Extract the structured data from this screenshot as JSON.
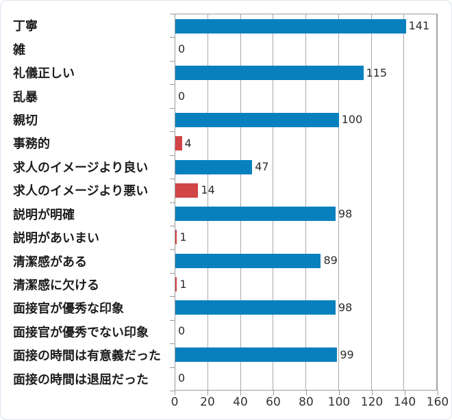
{
  "chart_data": {
    "type": "bar",
    "orientation": "horizontal",
    "title": "",
    "xlabel": "",
    "ylabel": "",
    "xlim": [
      0,
      160
    ],
    "x_ticks": [
      0,
      20,
      40,
      60,
      80,
      100,
      120,
      140,
      160
    ],
    "grid": "vertical-only",
    "legend": "none",
    "value_labels_position": "right-of-bar-end",
    "colors": {
      "positive": "#0880BE",
      "negative": "#D14547",
      "gridline": "#a8a8a8",
      "axis_border": "#9b9b9b",
      "category_text": "#1c1c1c",
      "value_text": "#2b2b2b",
      "tick_text": "#333333"
    },
    "categories": [
      "丁寧",
      "雑",
      "礼儀正しい",
      "乱暴",
      "親切",
      "事務的",
      "求人のイメージより良い",
      "求人のイメージより悪い",
      "説明が明確",
      "説明があいまい",
      "清潔感がある",
      "清潔感に欠ける",
      "面接官が優秀な印象",
      "面接官が優秀でない印象",
      "面接の時間は有意義だった",
      "面接の時間は退屈だった"
    ],
    "values": [
      141,
      0,
      115,
      0,
      100,
      4,
      47,
      14,
      98,
      1,
      89,
      1,
      98,
      0,
      99,
      0
    ],
    "rows": [
      {
        "label": "丁寧",
        "value": 141,
        "sentiment": "positive"
      },
      {
        "label": "雑",
        "value": 0,
        "sentiment": "negative"
      },
      {
        "label": "礼儀正しい",
        "value": 115,
        "sentiment": "positive"
      },
      {
        "label": "乱暴",
        "value": 0,
        "sentiment": "negative"
      },
      {
        "label": "親切",
        "value": 100,
        "sentiment": "positive"
      },
      {
        "label": "事務的",
        "value": 4,
        "sentiment": "negative"
      },
      {
        "label": "求人のイメージより良い",
        "value": 47,
        "sentiment": "positive"
      },
      {
        "label": "求人のイメージより悪い",
        "value": 14,
        "sentiment": "negative"
      },
      {
        "label": "説明が明確",
        "value": 98,
        "sentiment": "positive"
      },
      {
        "label": "説明があいまい",
        "value": 1,
        "sentiment": "negative"
      },
      {
        "label": "清潔感がある",
        "value": 89,
        "sentiment": "positive"
      },
      {
        "label": "清潔感に欠ける",
        "value": 1,
        "sentiment": "negative"
      },
      {
        "label": "面接官が優秀な印象",
        "value": 98,
        "sentiment": "positive"
      },
      {
        "label": "面接官が優秀でない印象",
        "value": 0,
        "sentiment": "negative"
      },
      {
        "label": "面接の時間は有意義だった",
        "value": 99,
        "sentiment": "positive"
      },
      {
        "label": "面接の時間は退屈だった",
        "value": 0,
        "sentiment": "negative"
      }
    ]
  }
}
